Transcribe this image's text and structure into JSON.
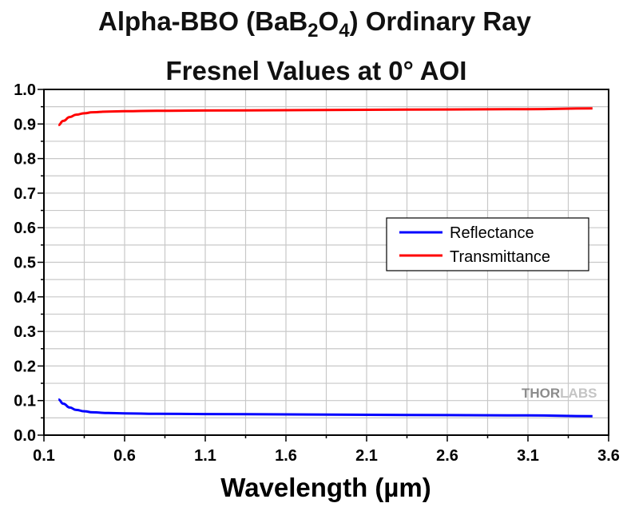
{
  "chart_data": {
    "type": "line",
    "title_line1_pre": "Alpha-BBO (BaB",
    "title_sub1": "2",
    "title_mid": "O",
    "title_sub2": "4",
    "title_line1_post": ") Ordinary Ray",
    "title_line2": "Fresnel Values at 0° AOI",
    "xlabel": "Wavelength (µm)",
    "ylabel": "",
    "xlim": [
      0.1,
      3.6
    ],
    "ylim": [
      0.0,
      1.0
    ],
    "xticks": [
      "0.1",
      "0.6",
      "1.1",
      "1.6",
      "2.1",
      "2.6",
      "3.1",
      "3.6"
    ],
    "yticks": [
      "0.0",
      "0.1",
      "0.2",
      "0.3",
      "0.4",
      "0.5",
      "0.6",
      "0.7",
      "0.8",
      "0.9",
      "1.0"
    ],
    "grid": true,
    "legend_position": "center-right",
    "series": [
      {
        "name": "Reflectance",
        "color": "#0000ff",
        "x": [
          0.19,
          0.22,
          0.26,
          0.3,
          0.35,
          0.4,
          0.5,
          0.6,
          0.8,
          1.1,
          1.6,
          2.1,
          2.6,
          3.1,
          3.5
        ],
        "y": [
          0.103,
          0.091,
          0.08,
          0.073,
          0.069,
          0.066,
          0.064,
          0.063,
          0.062,
          0.061,
          0.06,
          0.059,
          0.058,
          0.057,
          0.055
        ]
      },
      {
        "name": "Transmittance",
        "color": "#ff0000",
        "x": [
          0.19,
          0.22,
          0.26,
          0.3,
          0.35,
          0.4,
          0.5,
          0.6,
          0.8,
          1.1,
          1.6,
          2.1,
          2.6,
          3.1,
          3.5
        ],
        "y": [
          0.897,
          0.909,
          0.92,
          0.927,
          0.931,
          0.934,
          0.936,
          0.937,
          0.938,
          0.939,
          0.94,
          0.941,
          0.942,
          0.943,
          0.945
        ]
      }
    ]
  },
  "watermark": {
    "part1": "THOR",
    "part2": "LABS"
  }
}
